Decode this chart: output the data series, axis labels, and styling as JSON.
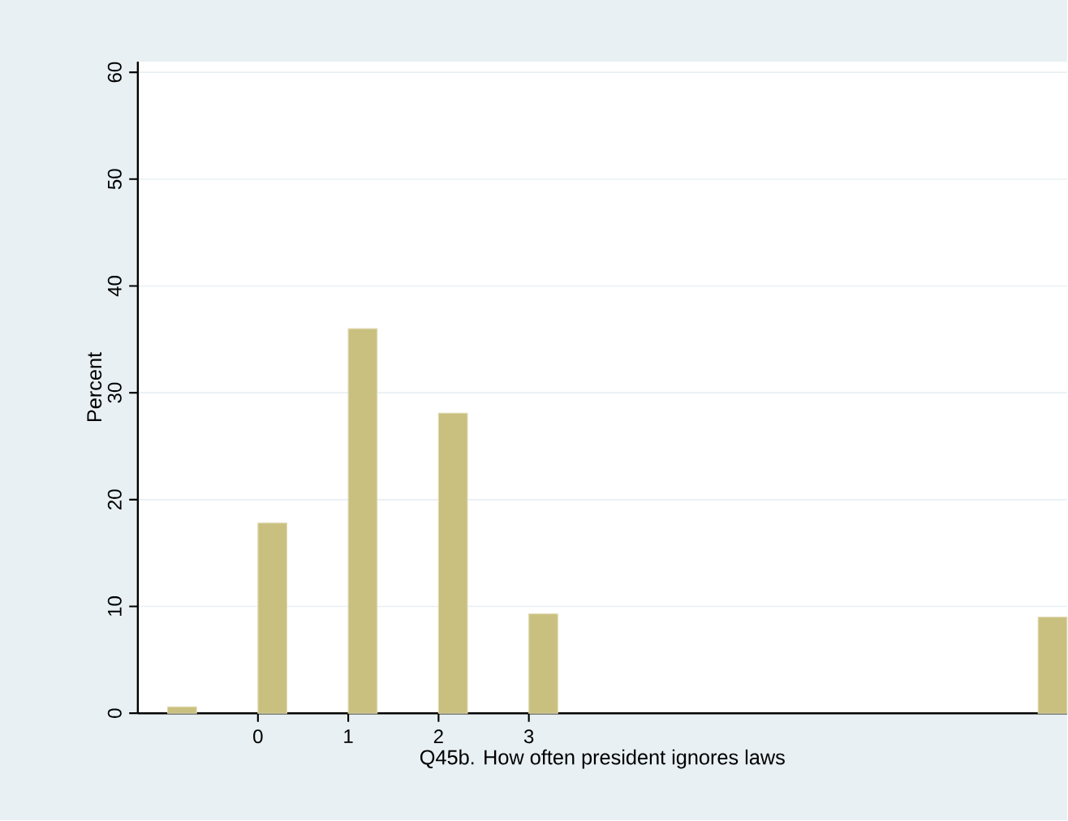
{
  "chart_data": {
    "type": "bar",
    "xlabel": "Q45b. How often president ignores laws",
    "ylabel": "Percent",
    "x": [
      -0.84,
      0.16,
      1.16,
      2.16,
      3.16,
      8.8
    ],
    "values": [
      0.6,
      17.8,
      36.0,
      28.1,
      9.3,
      9.0
    ],
    "color": "#c9c07f",
    "xlim": [
      -1.33,
      8.96
    ],
    "ylim": [
      0,
      61
    ],
    "xticks": [
      0,
      1,
      2,
      3
    ],
    "yticks": [
      0,
      10,
      20,
      30,
      40,
      50,
      60
    ],
    "grid": "y"
  }
}
